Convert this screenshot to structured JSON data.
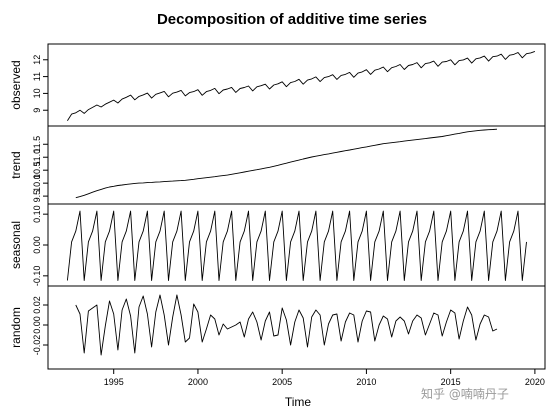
{
  "chart_data": {
    "type": "line",
    "title": "Decomposition of additive time series",
    "xlabel": "Time",
    "x_ticks": [
      1995,
      2000,
      2005,
      2010,
      2015,
      2020
    ],
    "x_start": 1992.25,
    "x_end": 2019.6,
    "frequency": 4,
    "xlim": [
      1991.1,
      2020.6
    ],
    "panels": [
      {
        "name": "observed",
        "ylabel": "observed",
        "ylim": [
          8.3,
          12.7
        ],
        "y_ticks": [
          9,
          10,
          11,
          12
        ],
        "values": [
          8.38,
          8.77,
          8.85,
          9.0,
          8.81,
          9.04,
          9.17,
          9.31,
          9.19,
          9.36,
          9.48,
          9.6,
          9.43,
          9.66,
          9.77,
          9.9,
          9.62,
          9.82,
          9.91,
          10.02,
          9.72,
          9.95,
          10.03,
          10.12,
          9.8,
          10.01,
          10.08,
          10.18,
          9.85,
          10.05,
          10.11,
          10.22,
          9.89,
          10.11,
          10.18,
          10.3,
          9.98,
          10.2,
          10.26,
          10.36,
          10.06,
          10.29,
          10.35,
          10.44,
          10.15,
          10.39,
          10.46,
          10.55,
          10.26,
          10.5,
          10.57,
          10.69,
          10.4,
          10.64,
          10.71,
          10.84,
          10.55,
          10.79,
          10.86,
          10.98,
          10.7,
          10.94,
          11.0,
          11.11,
          10.83,
          11.07,
          11.13,
          11.25,
          10.96,
          11.21,
          11.28,
          11.41,
          11.13,
          11.38,
          11.45,
          11.57,
          11.29,
          11.53,
          11.6,
          11.72,
          11.42,
          11.66,
          11.72,
          11.83,
          11.52,
          11.77,
          11.82,
          11.92,
          11.61,
          11.86,
          11.9,
          12.0,
          11.7,
          11.95,
          11.99,
          12.1,
          11.8,
          12.06,
          12.11,
          12.22,
          11.92,
          12.18,
          12.22,
          12.33,
          12.02,
          12.27,
          12.32,
          12.43,
          12.12,
          12.36,
          12.41,
          12.5
        ]
      },
      {
        "name": "trend",
        "ylabel": "trend",
        "ylim": [
          9.35,
          12.05
        ],
        "y_ticks": [
          9.5,
          10.0,
          10.5,
          11.0,
          11.5
        ],
        "y_tick_labels": [
          "9.5",
          "10.0",
          "10.5",
          "11.0",
          "11.5"
        ],
        "x_start": 1992.75,
        "values": [
          9.44,
          9.48,
          9.53,
          9.59,
          9.65,
          9.71,
          9.76,
          9.81,
          9.85,
          9.88,
          9.91,
          9.93,
          9.95,
          9.97,
          9.99,
          10.0,
          10.01,
          10.02,
          10.03,
          10.04,
          10.05,
          10.06,
          10.07,
          10.08,
          10.09,
          10.1,
          10.11,
          10.13,
          10.15,
          10.17,
          10.19,
          10.21,
          10.23,
          10.25,
          10.27,
          10.29,
          10.31,
          10.34,
          10.37,
          10.4,
          10.43,
          10.46,
          10.49,
          10.52,
          10.55,
          10.58,
          10.61,
          10.65,
          10.69,
          10.73,
          10.77,
          10.81,
          10.85,
          10.89,
          10.93,
          10.97,
          11.01,
          11.04,
          11.07,
          11.1,
          11.13,
          11.16,
          11.19,
          11.22,
          11.25,
          11.28,
          11.31,
          11.34,
          11.37,
          11.4,
          11.43,
          11.46,
          11.49,
          11.52,
          11.54,
          11.56,
          11.58,
          11.6,
          11.62,
          11.64,
          11.66,
          11.68,
          11.7,
          11.72,
          11.74,
          11.76,
          11.78,
          11.8,
          11.83,
          11.86,
          11.89,
          11.92,
          11.95,
          11.98,
          12.0,
          12.02,
          12.04,
          12.05,
          12.06,
          12.07,
          12.08
        ]
      },
      {
        "name": "seasonal",
        "ylabel": "seasonal",
        "ylim": [
          -0.12,
          0.12
        ],
        "y_ticks": [
          -0.1,
          0.0,
          0.1
        ],
        "y_tick_labels": [
          "-0.10",
          "0.00",
          "0.10"
        ],
        "pattern": [
          -0.115,
          0.01,
          0.045,
          0.11
        ]
      },
      {
        "name": "random",
        "ylabel": "random",
        "ylim": [
          -0.04,
          0.035
        ],
        "y_ticks": [
          -0.02,
          0.0,
          0.02
        ],
        "y_tick_labels": [
          "-0.02",
          "0.00",
          "0.02"
        ],
        "x_start": 1992.75,
        "values": [
          0.02,
          0.011,
          -0.028,
          0.014,
          0.017,
          0.02,
          -0.03,
          -0.001,
          0.024,
          0.011,
          -0.025,
          0.015,
          0.026,
          0.009,
          -0.028,
          0.018,
          0.029,
          0.011,
          -0.022,
          0.013,
          0.03,
          0.01,
          -0.02,
          0.008,
          0.03,
          0.01,
          -0.017,
          -0.013,
          0.021,
          0.013,
          -0.017,
          -0.004,
          0.01,
          0.006,
          -0.01,
          0.001,
          -0.004,
          -0.002,
          0.0,
          0.003,
          -0.012,
          0.006,
          0.013,
          0.003,
          -0.015,
          0.004,
          0.013,
          -0.011,
          -0.01,
          0.017,
          0.005,
          -0.02,
          0.003,
          0.015,
          0.007,
          -0.022,
          0.008,
          0.015,
          0.01,
          -0.02,
          0.001,
          0.01,
          0.011,
          -0.016,
          0.003,
          0.012,
          0.01,
          -0.017,
          0.004,
          0.014,
          0.013,
          -0.016,
          0.0,
          0.009,
          0.006,
          -0.012,
          0.004,
          0.008,
          0.004,
          -0.009,
          0.004,
          0.01,
          0.007,
          -0.01,
          0.001,
          0.012,
          0.01,
          -0.011,
          0.003,
          0.015,
          0.012,
          -0.014,
          0.004,
          0.018,
          0.01,
          -0.015,
          0.001,
          0.01,
          0.008,
          -0.006,
          -0.004
        ]
      }
    ]
  },
  "watermark": "知乎 @喃喃丹子",
  "colors": {
    "line": "#000000",
    "axis": "#000000",
    "watermark": "#9a9a9a"
  }
}
